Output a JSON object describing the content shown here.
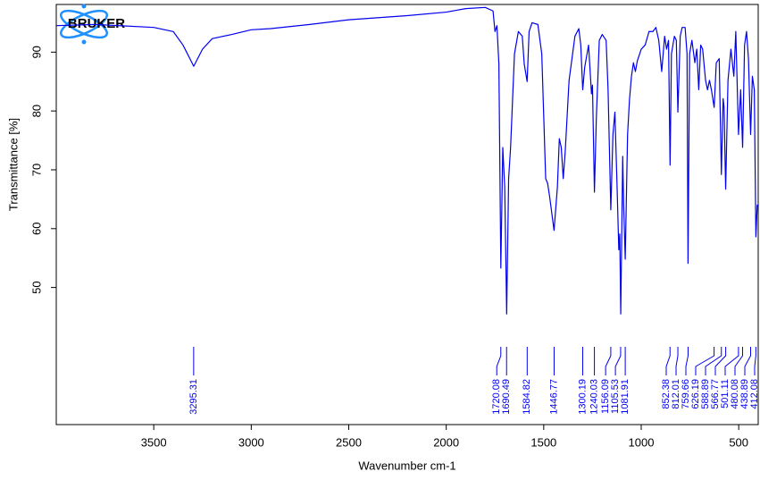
{
  "chart_data": {
    "type": "line",
    "logo": "BRUKER",
    "x_label": "Wavenumber cm-1",
    "y_label": "Transmittance [%]",
    "color": "#0000ee",
    "xlim": [
      4000,
      400
    ],
    "ylim": [
      26.7,
      98.1
    ],
    "xticks": [
      3500,
      3000,
      2500,
      2000,
      1500,
      1000,
      500
    ],
    "yticks": [
      50,
      60,
      70,
      80,
      90
    ],
    "grid": false,
    "x": [
      4000,
      3800,
      3500,
      3400,
      3350,
      3295,
      3250,
      3200,
      3100,
      3000,
      2900,
      2700,
      2500,
      2200,
      2000,
      1900,
      1800,
      1760,
      1750,
      1740,
      1730,
      1720,
      1710,
      1700,
      1690,
      1680,
      1670,
      1650,
      1630,
      1610,
      1600,
      1585,
      1575,
      1560,
      1530,
      1510,
      1490,
      1480,
      1470,
      1447,
      1430,
      1420,
      1410,
      1400,
      1390,
      1370,
      1340,
      1320,
      1310,
      1300,
      1290,
      1270,
      1255,
      1250,
      1240,
      1230,
      1215,
      1200,
      1180,
      1170,
      1156,
      1145,
      1135,
      1125,
      1115,
      1110,
      1105,
      1095,
      1090,
      1082,
      1070,
      1060,
      1050,
      1040,
      1030,
      1020,
      1000,
      980,
      960,
      940,
      925,
      910,
      895,
      880,
      870,
      860,
      852,
      845,
      830,
      820,
      812,
      800,
      790,
      775,
      765,
      760,
      752,
      740,
      725,
      715,
      705,
      695,
      685,
      670,
      660,
      650,
      640,
      626,
      615,
      600,
      589,
      580,
      575,
      567,
      555,
      540,
      525,
      515,
      501,
      490,
      480,
      470,
      460,
      450,
      439,
      430,
      420,
      412,
      405,
      400
    ],
    "values": [
      94.5,
      94.7,
      94.2,
      93.5,
      91.2,
      87.6,
      90.5,
      92.3,
      93,
      93.8,
      94,
      94.7,
      95.5,
      96.2,
      96.8,
      97.4,
      97.6,
      97,
      93.5,
      94.5,
      88,
      53.3,
      73.8,
      67,
      45.5,
      68.5,
      73.8,
      89.7,
      93.5,
      92.7,
      88,
      85,
      93.5,
      95,
      94.7,
      89.7,
      68.5,
      67.7,
      65.5,
      59.7,
      67,
      75.3,
      73.8,
      68.5,
      73,
      85.2,
      92.7,
      94,
      91.2,
      83.6,
      87.4,
      91.2,
      82.9,
      84.4,
      66.2,
      79,
      92,
      93,
      92,
      83.6,
      63.2,
      76,
      79.8,
      68.5,
      56.4,
      59.1,
      45.5,
      72.3,
      64,
      54.8,
      76,
      82,
      85.9,
      88.2,
      86.7,
      88.5,
      90.5,
      91.2,
      93.5,
      93.5,
      94.2,
      92,
      86.7,
      92.7,
      90.5,
      92,
      70.8,
      89.7,
      92.7,
      92,
      79.8,
      92.7,
      94.2,
      94.2,
      89.7,
      54.1,
      89.7,
      92,
      88.2,
      90.5,
      83.6,
      91.2,
      90.5,
      85.2,
      83.6,
      85.2,
      83.6,
      80.6,
      88.2,
      88.9,
      69.2,
      82.1,
      80.6,
      66.7,
      85.2,
      90.5,
      85.9,
      93.5,
      76,
      83.6,
      73.8,
      91.2,
      93.5,
      88.9,
      76,
      85.9,
      83.6,
      58.6,
      64,
      64
    ],
    "peaks": [
      3295.31,
      1720.08,
      1690.49,
      1584.82,
      1446.77,
      1300.19,
      1240.03,
      1156.09,
      1105.53,
      1081.91,
      852.38,
      812.01,
      759.66,
      626.19,
      588.89,
      566.77,
      501.11,
      480.08,
      438.89,
      412.08
    ]
  }
}
